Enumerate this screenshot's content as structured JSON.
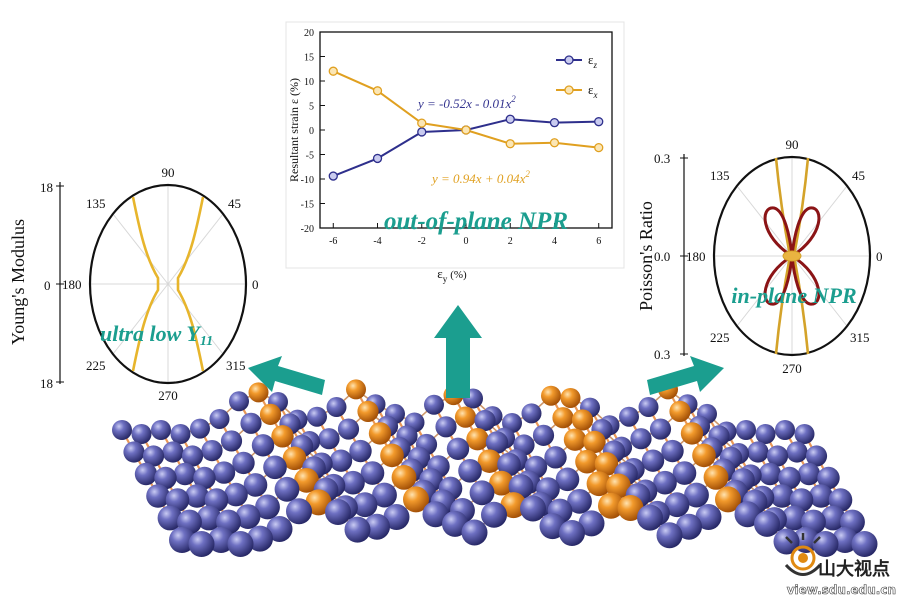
{
  "chart_data": [
    {
      "type": "line",
      "title": "",
      "xlabel": "ε",
      "xlabel_sub": "y",
      "xlabel_unit": "(%)",
      "ylabel": "Resultant strain ε (%)",
      "xlim": [
        -6.6,
        6.6
      ],
      "ylim": [
        -20,
        20
      ],
      "xticks": [
        -6,
        -4,
        -2,
        0,
        2,
        4,
        6
      ],
      "yticks": [
        -20,
        -15,
        -10,
        -5,
        0,
        5,
        10,
        15,
        20
      ],
      "x": [
        -6,
        -4,
        -2,
        0,
        2,
        4,
        6
      ],
      "series": [
        {
          "name": "ε",
          "sub": "z",
          "color": "#2e2f8c",
          "values": [
            -9.4,
            -5.8,
            -0.4,
            0.0,
            2.2,
            1.5,
            1.7
          ]
        },
        {
          "name": "ε",
          "sub": "x",
          "color": "#e0a020",
          "values": [
            12.0,
            8.0,
            1.4,
            0.0,
            -2.8,
            -2.6,
            -3.6
          ]
        }
      ],
      "annotations": [
        {
          "text": "y = -0.52x - 0.01x",
          "sup": "2",
          "color": "#33338f"
        },
        {
          "text": "y = 0.94x + 0.04x",
          "sup": "2",
          "color": "#e0a020"
        },
        {
          "text": "out-of-plane NPR",
          "color": "#1b9e8f"
        }
      ]
    },
    {
      "type": "polar",
      "title": "",
      "ylabel": "Young's Modulus",
      "yticks": [
        "18",
        "0",
        "18"
      ],
      "angle_labels": [
        "90",
        "45",
        "0",
        "315",
        "270",
        "225",
        "180",
        "135"
      ],
      "series": [
        {
          "name": "Young's Modulus",
          "color": "#e7b52c"
        }
      ],
      "annotation": {
        "text": "ultra low Y",
        "sub": "11",
        "color": "#1b9e8f"
      }
    },
    {
      "type": "polar",
      "title": "",
      "ylabel": "Poisson's Ratio",
      "yticks": [
        "0.3",
        "0.0",
        "0.3"
      ],
      "angle_labels": [
        "90",
        "45",
        "0",
        "315",
        "270",
        "225",
        "180",
        "135"
      ],
      "series": [
        {
          "name": "outer",
          "color": "#d4a32a"
        },
        {
          "name": "inner",
          "color": "#8b1416"
        }
      ],
      "annotation": {
        "text": "in-plane NPR",
        "color": "#1b9e8f"
      }
    }
  ],
  "colors": {
    "accent": "#1b9e8f",
    "atom_blue": "#4b4d9e",
    "atom_orange": "#ef8b1c"
  },
  "watermark": {
    "logo_text": "山大视点",
    "url": "view.sdu.edu.cn"
  }
}
